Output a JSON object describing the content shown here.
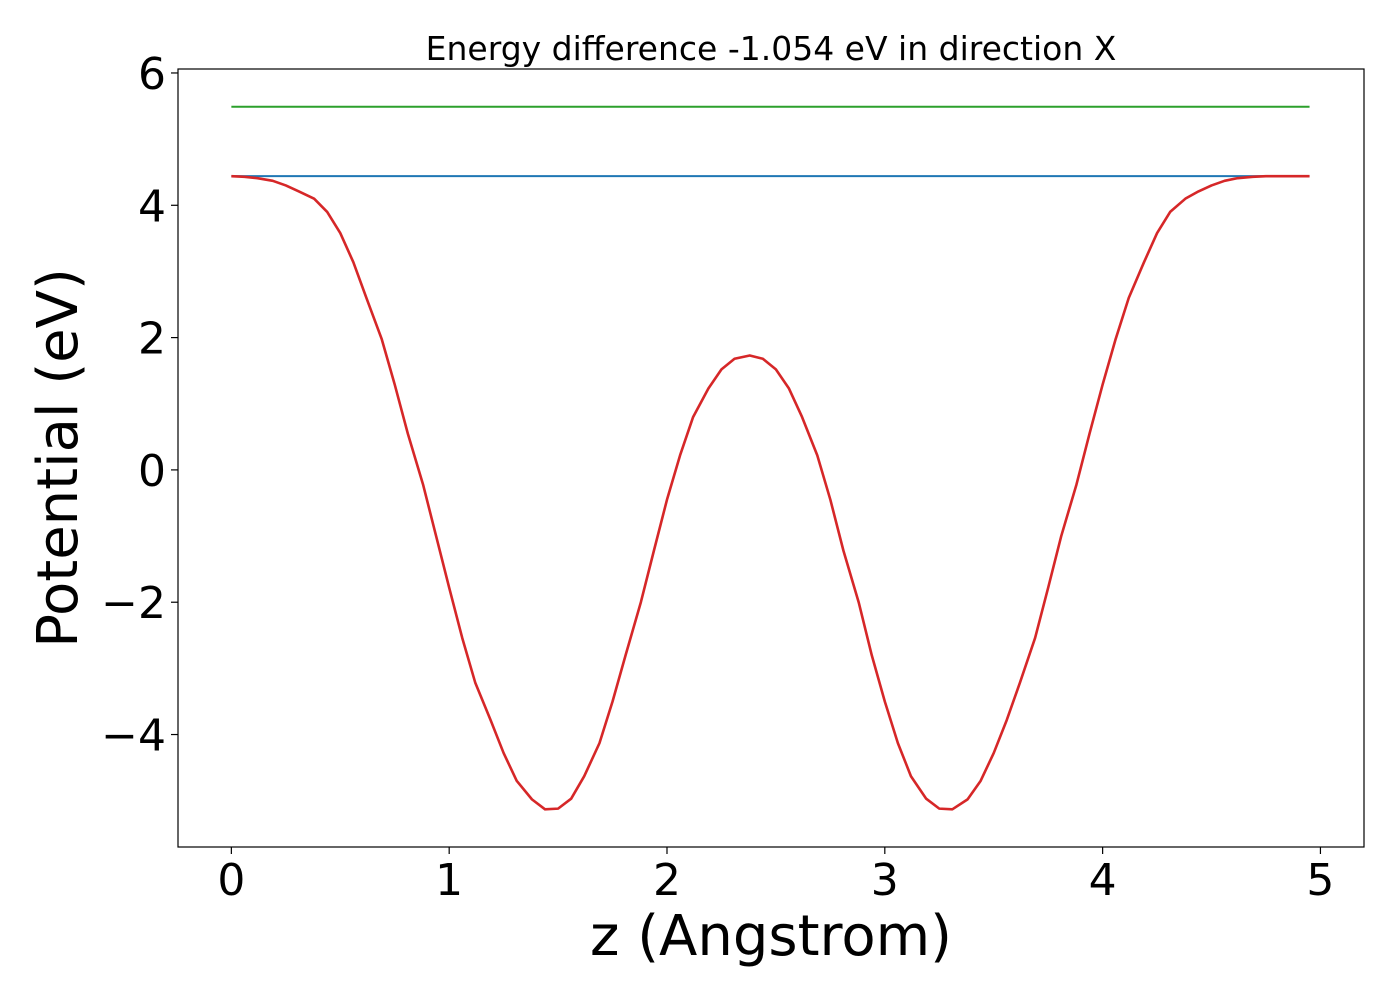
{
  "chart_data": {
    "type": "line",
    "title": "Energy difference -1.054 eV in direction X",
    "xlabel": "z (Angstrom)",
    "ylabel": "Potential (eV)",
    "xlim": [
      -0.245,
      5.2
    ],
    "ylim": [
      -5.7,
      6.06
    ],
    "xticks": [
      0,
      1,
      2,
      3,
      4,
      5
    ],
    "xtick_labels": [
      "0",
      "1",
      "2",
      "3",
      "4",
      "5"
    ],
    "yticks": [
      -4,
      -2,
      0,
      2,
      4,
      6
    ],
    "ytick_labels": [
      "−4",
      "−2",
      "0",
      "2",
      "4",
      "6"
    ],
    "grid": false,
    "legend": "none",
    "series": [
      {
        "color": "#2ca02c",
        "x": [
          0,
          4.95
        ],
        "y": [
          5.49,
          5.49
        ]
      },
      {
        "color": "#1f77b4",
        "x": [
          0,
          4.95
        ],
        "y": [
          4.44,
          4.44
        ]
      },
      {
        "color": "#d62728",
        "x": [
          0,
          0.06,
          0.12,
          0.19,
          0.25,
          0.31,
          0.38,
          0.44,
          0.5,
          0.56,
          0.62,
          0.69,
          0.75,
          0.81,
          0.88,
          0.94,
          1.0,
          1.06,
          1.12,
          1.19,
          1.25,
          1.31,
          1.38,
          1.44,
          1.5,
          1.56,
          1.62,
          1.69,
          1.75,
          1.81,
          1.88,
          1.94,
          2.0,
          2.06,
          2.12,
          2.19,
          2.25,
          2.31,
          2.38,
          2.44,
          2.5,
          2.56,
          2.62,
          2.69,
          2.75,
          2.81,
          2.88,
          2.94,
          3.0,
          3.06,
          3.12,
          3.19,
          3.25,
          3.31,
          3.38,
          3.44,
          3.5,
          3.56,
          3.62,
          3.69,
          3.75,
          3.81,
          3.88,
          3.94,
          4.0,
          4.06,
          4.12,
          4.19,
          4.25,
          4.31,
          4.38,
          4.44,
          4.5,
          4.56,
          4.62,
          4.69,
          4.75,
          4.81,
          4.88,
          4.95
        ],
        "y": [
          4.44,
          4.43,
          4.41,
          4.37,
          4.3,
          4.21,
          4.1,
          3.9,
          3.58,
          3.14,
          2.6,
          1.98,
          1.29,
          0.55,
          -0.22,
          -1.0,
          -1.78,
          -2.54,
          -3.22,
          -3.78,
          -4.28,
          -4.7,
          -4.98,
          -5.13,
          -5.12,
          -4.97,
          -4.63,
          -4.13,
          -3.5,
          -2.8,
          -2.0,
          -1.22,
          -0.45,
          0.22,
          0.8,
          1.23,
          1.52,
          1.68,
          1.73,
          1.68,
          1.52,
          1.23,
          0.8,
          0.22,
          -0.45,
          -1.22,
          -2.0,
          -2.8,
          -3.5,
          -4.13,
          -4.63,
          -4.97,
          -5.12,
          -5.13,
          -4.98,
          -4.7,
          -4.28,
          -3.78,
          -3.22,
          -2.54,
          -1.78,
          -1.0,
          -0.22,
          0.55,
          1.29,
          1.98,
          2.6,
          3.14,
          3.58,
          3.9,
          4.1,
          4.21,
          4.3,
          4.37,
          4.41,
          4.43,
          4.44,
          4.44,
          4.44,
          4.44
        ]
      }
    ]
  }
}
